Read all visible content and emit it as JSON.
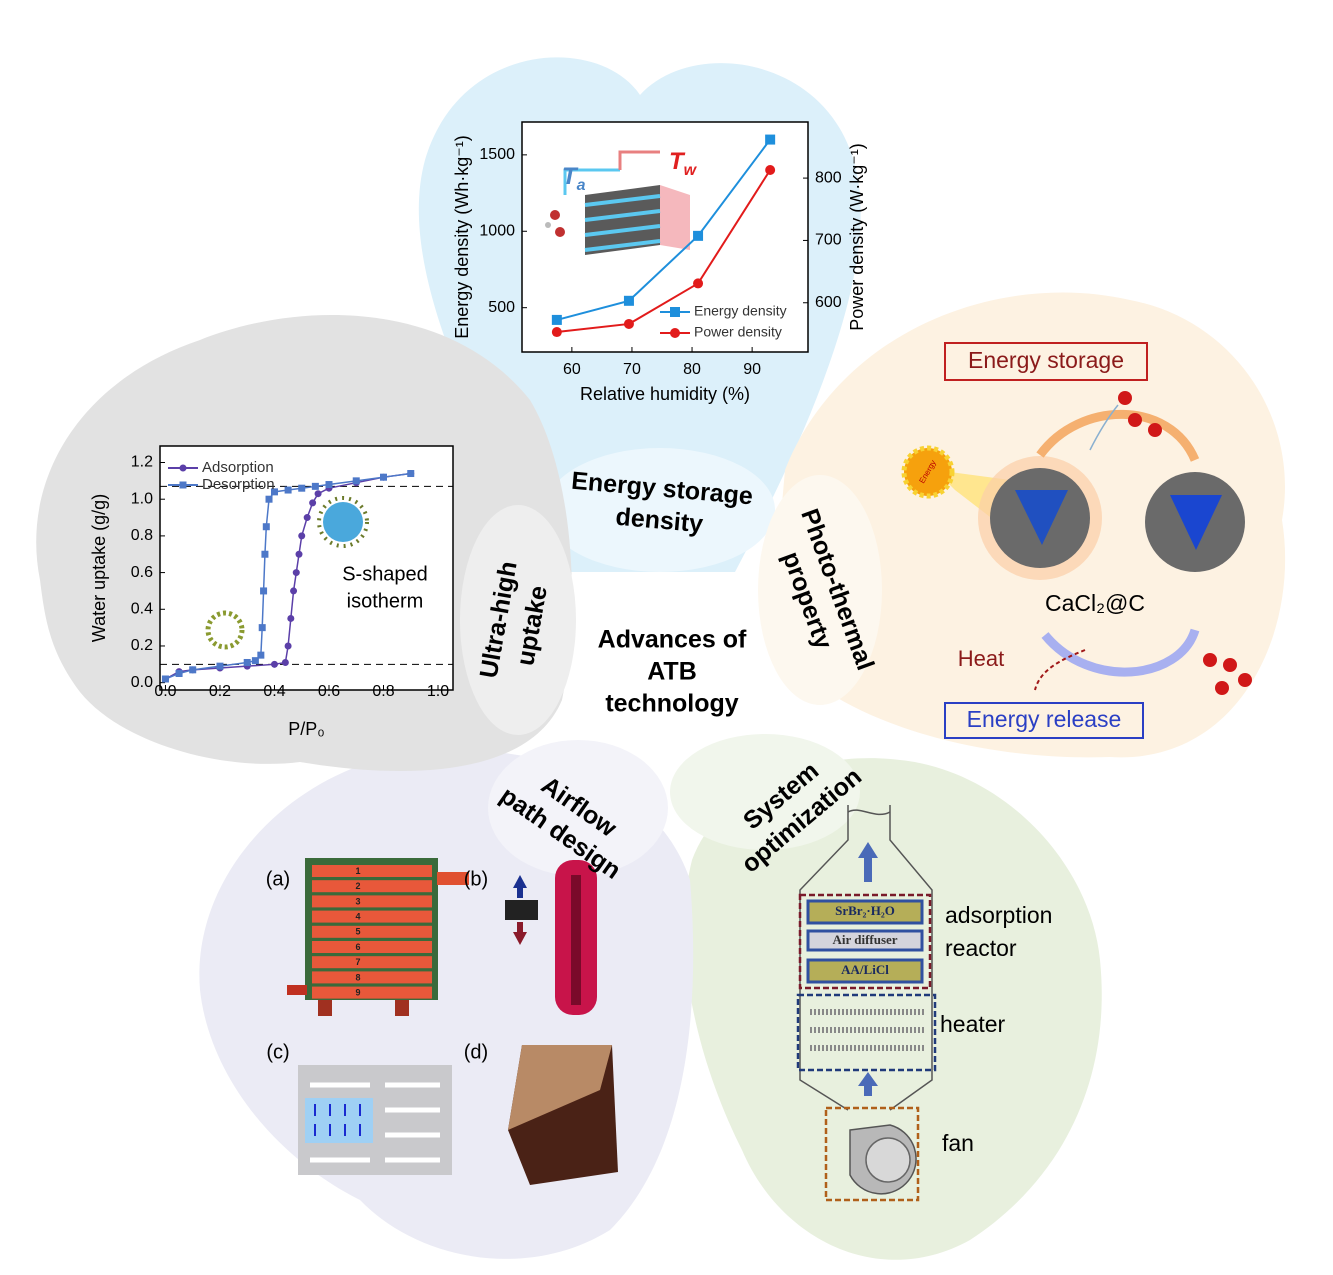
{
  "center_title": [
    "Advances of",
    "ATB",
    "technology"
  ],
  "energy_storage_density": {
    "label": [
      "Energy storage",
      "density"
    ]
  },
  "photo_thermal": {
    "label": [
      "Photo-thermal",
      "property"
    ],
    "energy_storage": "Energy storage",
    "energy_release": "Energy release",
    "heat": "Heat",
    "material": "CaCl₂@C",
    "sun": "Energy"
  },
  "system_optimization": {
    "label": [
      "System",
      "optimization"
    ],
    "layers": [
      "SrBr₂·H₂O",
      "Air diffuser",
      "AA/LiCl"
    ],
    "reactor": [
      "adsorption",
      "reactor"
    ],
    "heater": "heater",
    "fan": "fan"
  },
  "airflow": {
    "label": [
      "Airflow",
      "path design"
    ],
    "panels": [
      "(a)",
      "(b)",
      "(c)",
      "(d)"
    ],
    "layers": [
      "1",
      "2",
      "3",
      "4",
      "5",
      "6",
      "7",
      "8",
      "9"
    ]
  },
  "ultra_high_uptake": {
    "label": [
      "Ultra-high",
      "uptake"
    ]
  },
  "chart_data": [
    {
      "type": "line",
      "x_label": "Relative humidity (%)",
      "y_label": "Energy density (Wh·kg⁻¹)",
      "y2_label": "Power density (W·kg⁻¹)",
      "xlim": [
        51.7,
        99.3
      ],
      "xticks": [
        60,
        70,
        80,
        90
      ],
      "ylim": [
        210,
        1715
      ],
      "yticks": [
        500,
        1000,
        1500
      ],
      "y2lim": [
        521,
        890
      ],
      "y2ticks": [
        600,
        700,
        800
      ],
      "legend": "lower right",
      "inset_labels": [
        {
          "main": "T",
          "sub": "a",
          "color": "#4a86c8"
        },
        {
          "main": "T",
          "sub": "w",
          "color": "#e02020"
        }
      ],
      "series": [
        {
          "name": "Energy density",
          "color": "#1e8fdc",
          "marker": "square",
          "x": [
            57.5,
            69.5,
            81,
            93
          ],
          "values": [
            420,
            545,
            970,
            1600
          ]
        },
        {
          "name": "Power density",
          "color": "#e21b1b",
          "marker": "circle",
          "axis": "y2",
          "x": [
            57.5,
            69.5,
            81,
            93
          ],
          "values": [
            553,
            566,
            631,
            813
          ]
        }
      ]
    },
    {
      "type": "line",
      "x_label": "P/P₀",
      "y_label": "Water uptake (g/g)",
      "xlim": [
        -0.02,
        1.055
      ],
      "xticks": [
        {
          "value": 0,
          "label": "0.0"
        },
        {
          "value": 0.2,
          "label": "0.2"
        },
        {
          "value": 0.4,
          "label": "0.4"
        },
        {
          "value": 0.6,
          "label": "0.6"
        },
        {
          "value": 0.8,
          "label": "0.8"
        },
        {
          "value": 1,
          "label": "1.0"
        }
      ],
      "ylim": [
        -0.04,
        1.29
      ],
      "yticks": [
        {
          "value": 0,
          "label": "0.0"
        },
        {
          "value": 0.2,
          "label": "0.2"
        },
        {
          "value": 0.4,
          "label": "0.4"
        },
        {
          "value": 0.6,
          "label": "0.6"
        },
        {
          "value": 0.8,
          "label": "0.8"
        },
        {
          "value": 1,
          "label": "1.0"
        },
        {
          "value": 1.2,
          "label": "1.2"
        }
      ],
      "reference_lines": [
        1.07,
        0.1
      ],
      "legend": "upper left",
      "annotation": [
        "S-shaped",
        "isotherm"
      ],
      "series": [
        {
          "name": "Adsorption",
          "color": "#5b3fa8",
          "marker": "circle",
          "x": [
            0,
            0.05,
            0.1,
            0.2,
            0.3,
            0.4,
            0.44,
            0.45,
            0.46,
            0.47,
            0.48,
            0.49,
            0.5,
            0.52,
            0.54,
            0.56,
            0.6,
            0.7,
            0.8,
            0.9
          ],
          "values": [
            0.02,
            0.06,
            0.07,
            0.08,
            0.09,
            0.1,
            0.11,
            0.2,
            0.35,
            0.5,
            0.6,
            0.7,
            0.8,
            0.9,
            0.98,
            1.03,
            1.06,
            1.09,
            1.12,
            1.14
          ]
        },
        {
          "name": "Desorption",
          "color": "#4d78c8",
          "marker": "square",
          "x": [
            0.9,
            0.8,
            0.7,
            0.6,
            0.55,
            0.5,
            0.45,
            0.4,
            0.38,
            0.37,
            0.365,
            0.36,
            0.355,
            0.35,
            0.33,
            0.3,
            0.2,
            0.1,
            0.05,
            0
          ],
          "values": [
            1.14,
            1.12,
            1.1,
            1.08,
            1.07,
            1.06,
            1.05,
            1.04,
            1,
            0.85,
            0.7,
            0.5,
            0.3,
            0.15,
            0.12,
            0.11,
            0.09,
            0.07,
            0.05,
            0.02
          ]
        }
      ]
    }
  ]
}
